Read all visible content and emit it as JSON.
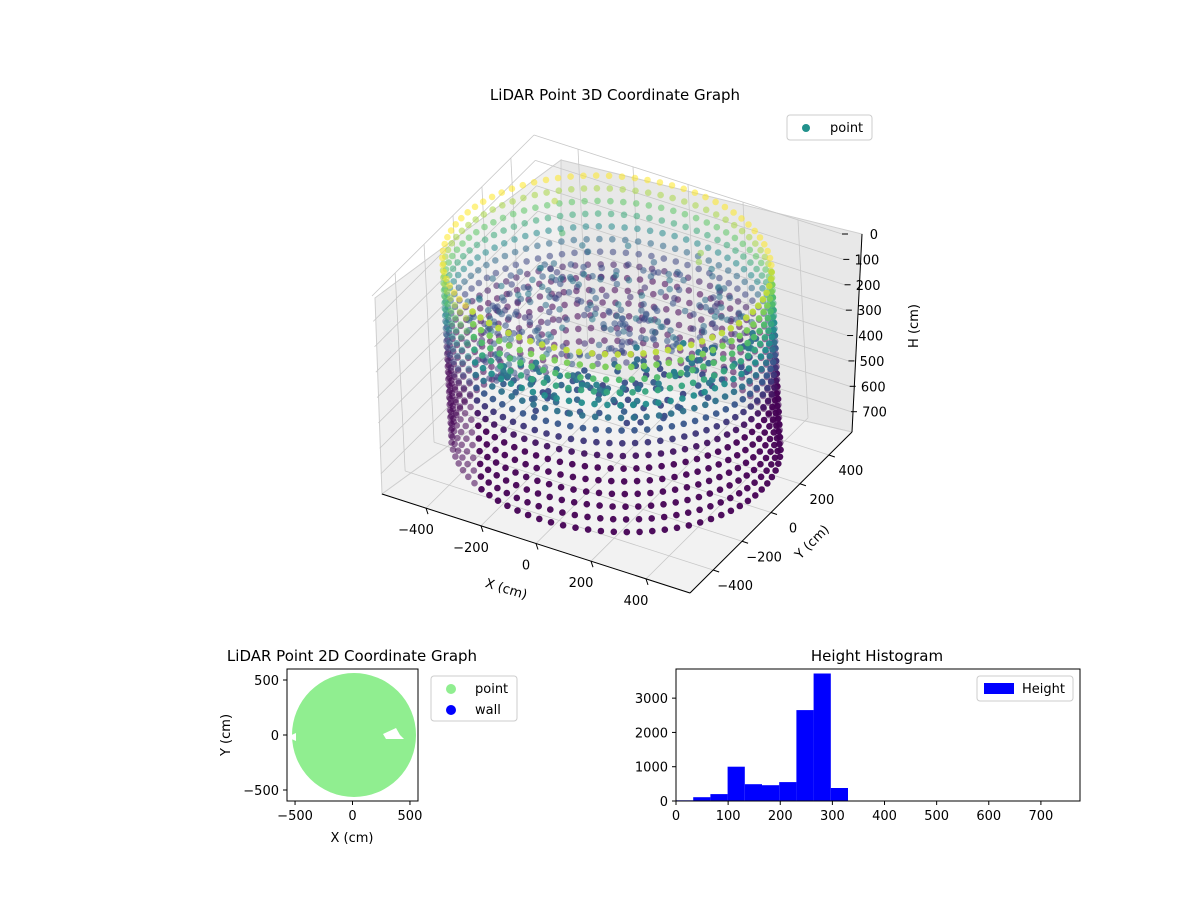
{
  "figure": {
    "background": "#ffffff"
  },
  "chart_data": [
    {
      "type": "scatter",
      "projection": "3d",
      "title": "LiDAR Point 3D Coordinate Graph",
      "xlabel": "X (cm)",
      "ylabel": "Y (cm)",
      "zlabel": "H (cm)",
      "x_ticks": [
        -400,
        -200,
        0,
        200,
        400
      ],
      "x_tick_labels": [
        "−400",
        "−200",
        "0",
        "200",
        "400"
      ],
      "y_ticks": [
        -400,
        -200,
        0,
        200,
        400
      ],
      "y_tick_labels": [
        "−400",
        "−200",
        "0",
        "200",
        "400"
      ],
      "z_ticks": [
        0,
        100,
        200,
        300,
        400,
        500,
        600,
        700
      ],
      "z_tick_labels": [
        "0",
        "100",
        "200",
        "300",
        "400",
        "500",
        "600",
        "700"
      ],
      "xlim": [
        -560,
        560
      ],
      "ylim": [
        -560,
        560
      ],
      "zlim": [
        0,
        780
      ],
      "z_inverted": true,
      "colormap": "viridis",
      "grid": true,
      "legend": {
        "position": "top-right",
        "entries": [
          {
            "label": "point",
            "color": "#21918c"
          }
        ]
      },
      "series": [
        {
          "name": "point",
          "description_of_structure": "ring of points at radius ~530 cm spanning heights ~0-700 cm plus interior ceiling/object points",
          "ring_radius": 530,
          "ring_height_range": [
            0,
            700
          ],
          "interior_samples": [
            {
              "x": -350,
              "y": -100,
              "h": 250
            },
            {
              "x": -250,
              "y": 50,
              "h": 300
            },
            {
              "x": -100,
              "y": -150,
              "h": 300
            },
            {
              "x": 0,
              "y": 100,
              "h": 290
            },
            {
              "x": 100,
              "y": 200,
              "h": 300
            },
            {
              "x": 200,
              "y": -50,
              "h": 290
            },
            {
              "x": 300,
              "y": 150,
              "h": 300
            },
            {
              "x": 50,
              "y": -250,
              "h": 280
            },
            {
              "x": -300,
              "y": 250,
              "h": 120
            },
            {
              "x": -350,
              "y": 300,
              "h": 40
            },
            {
              "x": 200,
              "y": 250,
              "h": 60
            },
            {
              "x": 180,
              "y": 300,
              "h": 60
            }
          ]
        }
      ]
    },
    {
      "type": "scatter",
      "title": "LiDAR Point 2D Coordinate Graph",
      "xlabel": "X (cm)",
      "ylabel": "Y (cm)",
      "xlim": [
        -570,
        570
      ],
      "ylim": [
        -600,
        600
      ],
      "x_ticks": [
        -500,
        0,
        500
      ],
      "x_tick_labels": [
        "−500",
        "0",
        "500"
      ],
      "y_ticks": [
        -500,
        0,
        500
      ],
      "y_tick_labels": [
        "−500",
        "0",
        "500"
      ],
      "legend": {
        "position": "outside-right",
        "entries": [
          {
            "label": "point",
            "color": "#90ee90"
          },
          {
            "label": "wall",
            "color": "#0000ff"
          }
        ]
      },
      "series": [
        {
          "name": "point",
          "color": "#90ee90",
          "shape": "filled disc",
          "center": [
            0,
            0
          ],
          "radius": 540
        },
        {
          "name": "wall",
          "color": "#0000ff",
          "values": []
        }
      ]
    },
    {
      "type": "bar",
      "subtype": "histogram",
      "title": "Height Histogram",
      "xlabel": "",
      "ylabel": "",
      "xlim": [
        0,
        775
      ],
      "ylim": [
        0,
        3850
      ],
      "x_ticks": [
        0,
        100,
        200,
        300,
        400,
        500,
        600,
        700
      ],
      "x_tick_labels": [
        "0",
        "100",
        "200",
        "300",
        "400",
        "500",
        "600",
        "700"
      ],
      "y_ticks": [
        0,
        1000,
        2000,
        3000
      ],
      "y_tick_labels": [
        "0",
        "1000",
        "2000",
        "3000"
      ],
      "bin_edges": [
        0,
        33,
        66,
        99,
        132,
        165,
        198,
        231,
        264,
        297,
        330,
        363,
        396,
        429,
        462,
        495,
        528,
        561,
        594,
        627,
        660,
        693,
        726,
        759
      ],
      "values": [
        20,
        110,
        200,
        1000,
        490,
        460,
        550,
        2650,
        3720,
        380,
        0,
        0,
        0,
        0,
        0,
        0,
        0,
        0,
        0,
        0,
        0,
        0,
        0
      ],
      "color": "#0000ff",
      "legend": {
        "position": "top-right",
        "entries": [
          {
            "label": "Height",
            "color": "#0000ff"
          }
        ]
      }
    }
  ]
}
